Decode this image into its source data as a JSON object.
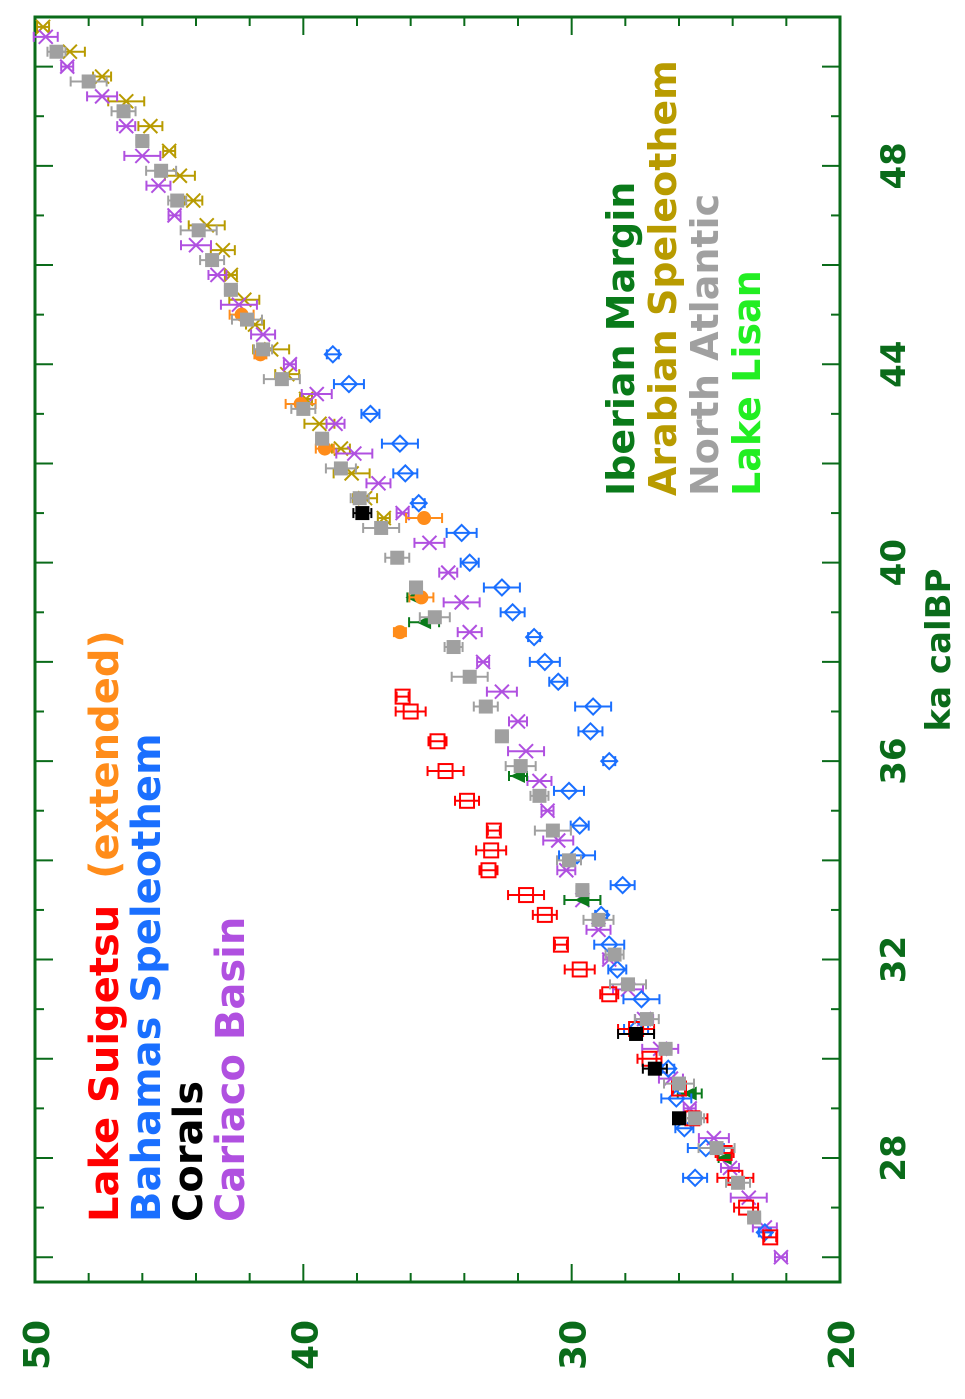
{
  "chart_data": {
    "type": "scatter",
    "title": "",
    "xlabel": "ka calBP",
    "ylabel": "",
    "x_range": [
      25.5,
      51
    ],
    "y_range": [
      20,
      50
    ],
    "x_ticks": [
      "28",
      "32",
      "36",
      "40",
      "44",
      "48"
    ],
    "y_ticks": [
      "20",
      "30",
      "40",
      "50"
    ],
    "legend_left": [
      {
        "text": "Lake Suigetsu",
        "color": "#ff0000"
      },
      {
        "text": "(extended)",
        "color": "#ff8c1a"
      },
      {
        "text": "Bahamas Speleothem",
        "color": "#1a6fff"
      },
      {
        "text": "Corals",
        "color": "#000000"
      },
      {
        "text": "Cariaco Basin",
        "color": "#b050e0"
      }
    ],
    "legend_right": [
      {
        "text": "Iberian Margin",
        "color": "#0a7a1a"
      },
      {
        "text": "Arabian Speleothem",
        "color": "#b89b00"
      },
      {
        "text": "North Atlantic",
        "color": "#a0a0a0"
      },
      {
        "text": "Lake Lisan",
        "color": "#22ee22"
      }
    ],
    "series": [
      {
        "name": "Lake Suigetsu",
        "color": "#ff0000",
        "marker": "open-square",
        "x": [
          26.4,
          27.0,
          27.6,
          28.1,
          28.8,
          29.4,
          30.0,
          30.6,
          31.3,
          31.8,
          32.3,
          32.9,
          33.3,
          33.8,
          34.2,
          34.6,
          35.2,
          35.8,
          36.4,
          37.0,
          37.3
        ],
        "y": [
          22.6,
          23.5,
          23.9,
          24.3,
          25.5,
          26.0,
          27.1,
          27.6,
          28.6,
          29.7,
          30.4,
          31.0,
          31.7,
          33.1,
          33.0,
          32.9,
          33.9,
          34.7,
          35.0,
          36.0,
          36.3
        ]
      },
      {
        "name": "Lake Suigetsu (extended)",
        "color": "#ff8c1a",
        "marker": "filled-circle",
        "x": [
          38.6,
          39.3,
          40.9,
          42.3,
          43.2,
          44.2,
          45.0
        ],
        "y": [
          36.4,
          35.6,
          35.5,
          39.2,
          40.1,
          41.6,
          42.3
        ]
      },
      {
        "name": "Bahamas Speleothem",
        "color": "#1a6fff",
        "marker": "open-diamond",
        "x": [
          26.5,
          27.6,
          28.2,
          28.6,
          29.2,
          29.8,
          30.6,
          31.2,
          31.8,
          32.3,
          32.9,
          33.5,
          34.1,
          34.7,
          35.4,
          36.0,
          36.6,
          37.1,
          37.6,
          38.0,
          38.5,
          39.0,
          39.5,
          40.0,
          40.6,
          41.2,
          41.8,
          42.4,
          43.0,
          43.6,
          44.2
        ],
        "y": [
          22.8,
          25.4,
          25.0,
          25.8,
          26.1,
          26.4,
          27.6,
          27.4,
          28.3,
          28.6,
          28.9,
          28.1,
          29.8,
          29.7,
          30.1,
          28.6,
          29.3,
          29.2,
          30.5,
          31.0,
          31.4,
          32.2,
          32.6,
          33.8,
          34.1,
          35.7,
          36.2,
          36.4,
          37.5,
          38.3,
          38.9
        ]
      },
      {
        "name": "Corals",
        "color": "#000000",
        "marker": "filled-square",
        "x": [
          28.8,
          29.8,
          30.5,
          41.0
        ],
        "y": [
          26.0,
          26.9,
          27.6,
          37.8
        ]
      },
      {
        "name": "Cariaco Basin",
        "color": "#b050e0",
        "marker": "x",
        "x": [
          26.0,
          26.6,
          27.2,
          27.8,
          28.4,
          29.0,
          29.6,
          30.2,
          30.8,
          31.4,
          32.0,
          32.6,
          33.2,
          33.8,
          34.4,
          35.0,
          35.6,
          36.2,
          36.8,
          37.4,
          38.0,
          38.6,
          39.2,
          39.8,
          40.4,
          41.0,
          41.6,
          42.2,
          42.8,
          43.4,
          44.0,
          44.6,
          45.2,
          45.8,
          46.4,
          47.0,
          47.6,
          48.2,
          48.8,
          49.4,
          50.0,
          50.6
        ],
        "y": [
          22.2,
          22.8,
          23.4,
          24.1,
          24.7,
          25.6,
          26.3,
          26.7,
          27.3,
          27.9,
          28.6,
          29.0,
          29.6,
          30.2,
          30.5,
          30.9,
          31.2,
          31.7,
          32.0,
          32.6,
          33.3,
          33.8,
          34.1,
          34.6,
          35.3,
          36.3,
          37.2,
          38.1,
          38.8,
          39.5,
          40.5,
          41.5,
          42.4,
          43.2,
          44.0,
          44.8,
          45.4,
          46.0,
          46.6,
          47.5,
          48.8,
          49.6
        ]
      },
      {
        "name": "Iberian Margin",
        "color": "#0a7a1a",
        "marker": "filled-triangle",
        "x": [
          28.0,
          29.3,
          33.2,
          35.7,
          38.8,
          39.3
        ],
        "y": [
          24.3,
          25.6,
          29.6,
          32.0,
          35.5,
          35.9
        ]
      },
      {
        "name": "Arabian Speleothem",
        "color": "#b89b00",
        "marker": "x",
        "x": [
          40.9,
          41.3,
          41.8,
          42.3,
          42.8,
          43.3,
          43.8,
          44.3,
          44.8,
          45.3,
          45.8,
          46.3,
          46.8,
          47.3,
          47.8,
          48.3,
          48.8,
          49.3,
          49.8,
          50.3,
          50.8
        ],
        "y": [
          37.0,
          37.7,
          38.2,
          38.6,
          39.4,
          39.9,
          40.6,
          41.2,
          41.8,
          42.2,
          42.7,
          43.0,
          43.6,
          44.1,
          44.6,
          45.0,
          45.7,
          46.6,
          47.5,
          48.7,
          49.7
        ]
      },
      {
        "name": "North Atlantic",
        "color": "#a0a0a0",
        "marker": "filled-square",
        "x": [
          26.8,
          27.5,
          28.2,
          28.8,
          29.5,
          30.2,
          30.8,
          31.5,
          32.1,
          32.8,
          33.4,
          34.0,
          34.6,
          35.3,
          35.9,
          36.5,
          37.1,
          37.7,
          38.3,
          38.9,
          39.5,
          40.1,
          40.7,
          41.3,
          41.9,
          42.5,
          43.1,
          43.7,
          44.3,
          44.9,
          45.5,
          46.1,
          46.7,
          47.3,
          47.9,
          48.5,
          49.1,
          49.7,
          50.3
        ],
        "y": [
          23.2,
          23.8,
          24.6,
          25.4,
          26.0,
          26.5,
          27.2,
          27.9,
          28.4,
          29.0,
          29.6,
          30.1,
          30.7,
          31.2,
          31.9,
          32.6,
          33.2,
          33.8,
          34.4,
          35.1,
          35.8,
          36.5,
          37.1,
          37.9,
          38.6,
          39.3,
          40.0,
          40.8,
          41.5,
          42.1,
          42.7,
          43.4,
          43.9,
          44.7,
          45.3,
          46.0,
          46.7,
          48.0,
          49.2
        ]
      },
      {
        "name": "Lake Lisan",
        "color": "#22ee22",
        "marker": "filled-diamond",
        "x": [
          27.5,
          28.6,
          31.9,
          33.2,
          34.1,
          34.9,
          36.9,
          38.2,
          42.5
        ],
        "y": [
          24.2,
          26.3,
          29.5,
          32.4,
          32.8,
          32.6,
          34.6,
          35.1,
          38.8
        ]
      }
    ]
  }
}
